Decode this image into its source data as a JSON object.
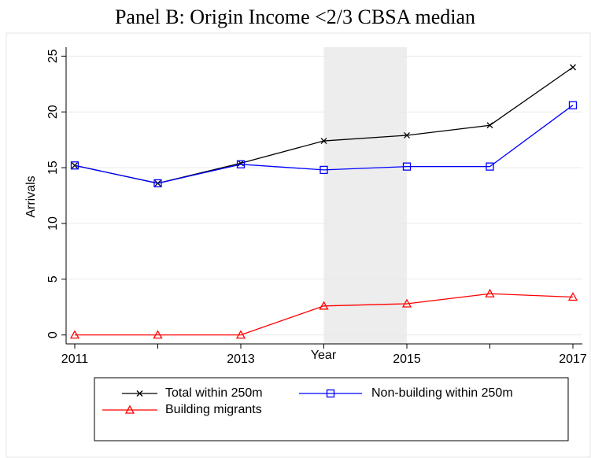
{
  "chart_data": {
    "type": "line",
    "title": "Panel B: Origin Income <2/3 CBSA median",
    "x_label": "Year",
    "y_label": "Arrivals",
    "x": [
      2011,
      2012,
      2013,
      2014,
      2015,
      2016,
      2017
    ],
    "series": [
      {
        "name": "Total within 250m",
        "color": "#000000",
        "marker": "x",
        "values": [
          15.2,
          13.6,
          15.4,
          17.4,
          17.9,
          18.8,
          24.0
        ]
      },
      {
        "name": "Non-building within 250m",
        "color": "#0000ff",
        "marker": "square",
        "values": [
          15.2,
          13.6,
          15.3,
          14.8,
          15.1,
          15.1,
          20.6
        ]
      },
      {
        "name": "Building migrants",
        "color": "#ff0000",
        "marker": "triangle",
        "values": [
          0,
          0,
          0,
          2.6,
          2.8,
          3.7,
          3.4
        ]
      }
    ],
    "shaded_span": [
      2014,
      2015
    ],
    "xlim": [
      2011,
      2017
    ],
    "xticks": [
      2011,
      2013,
      2015,
      2017
    ],
    "ylim": [
      -0.8,
      25.8
    ],
    "yticks": [
      0,
      5,
      10,
      15,
      20,
      25
    ],
    "grid": true,
    "legend": "bottom"
  }
}
